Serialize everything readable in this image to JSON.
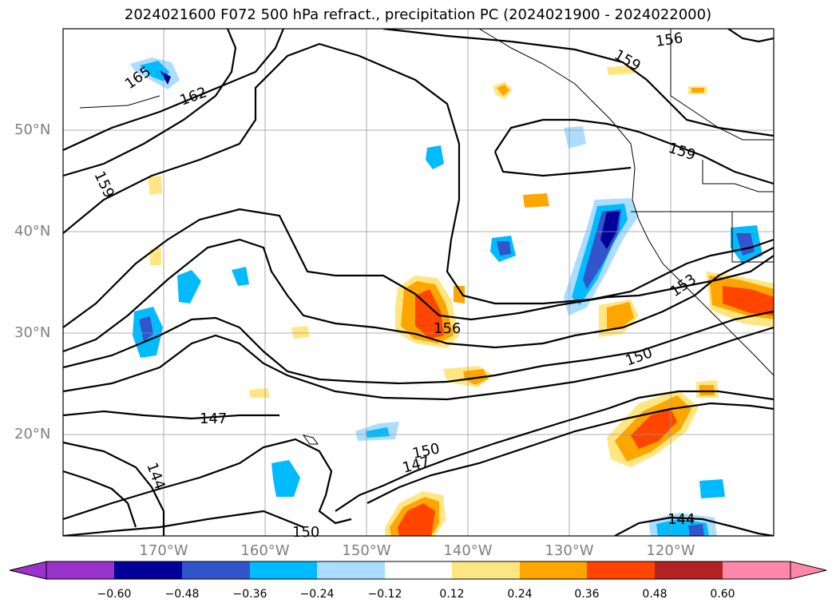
{
  "title": "2024021600 F072 500 hPa refract., precipitation PC (2024021900 - 2024022000)",
  "lat_labels": [
    "50°N",
    "40°N",
    "30°N",
    "20°N"
  ],
  "lon_labels": [
    "170°W",
    "160°W",
    "150°W",
    "140°W",
    "130°W",
    "120°W"
  ],
  "contour_labels": [
    "165",
    "162",
    "159",
    "156",
    "159",
    "159",
    "156",
    "153",
    "150",
    "147",
    "150",
    "147",
    "144",
    "150",
    "144"
  ],
  "colorbar": {
    "ticks": [
      "−0.60",
      "−0.48",
      "−0.36",
      "−0.24",
      "−0.12",
      "0.12",
      "0.24",
      "0.36",
      "0.48",
      "0.60"
    ],
    "colors": [
      "#9933cc",
      "#000099",
      "#3355cc",
      "#00bbff",
      "#aaddff",
      "#ffffff",
      "#ffe680",
      "#ffa500",
      "#ff4500",
      "#b22222",
      "#ff88aa"
    ]
  },
  "colors": {
    "neg_strong": "#000099",
    "neg_mid": "#3355cc",
    "neg_blue": "#00bbff",
    "neg_light": "#aaddff",
    "pos_light": "#ffe680",
    "pos_orange": "#ffa500",
    "pos_red": "#ff4500",
    "pos_dark": "#b22222"
  }
}
